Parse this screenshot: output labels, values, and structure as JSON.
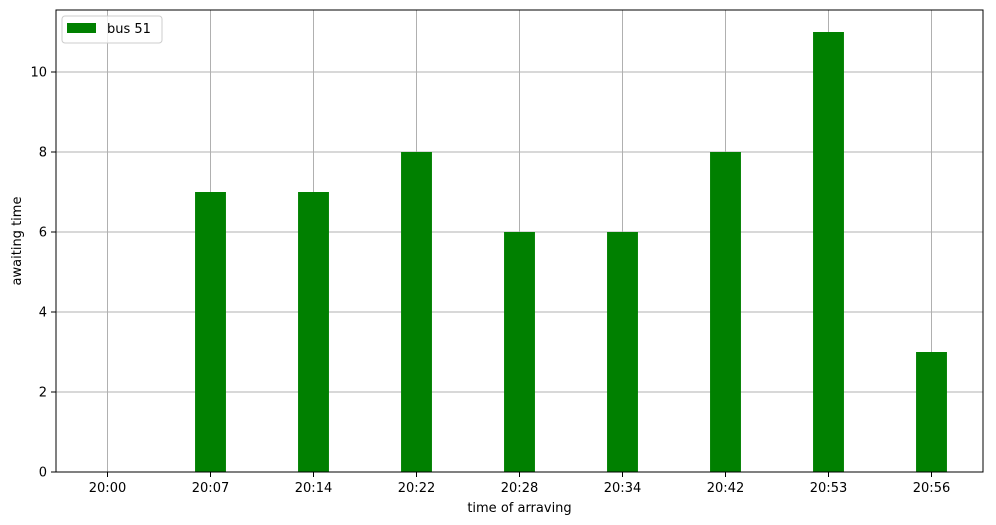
{
  "chart_data": {
    "type": "bar",
    "categories": [
      "20:00",
      "20:07",
      "20:14",
      "20:22",
      "20:28",
      "20:34",
      "20:42",
      "20:53",
      "20:56"
    ],
    "series": [
      {
        "name": "bus 51",
        "values": [
          0,
          7,
          7,
          8,
          6,
          6,
          8,
          11,
          3
        ],
        "color": "#008000"
      }
    ],
    "title": "",
    "xlabel": "time of arraving",
    "ylabel": "awaiting time",
    "ylim": [
      0,
      11.55
    ],
    "yticks": [
      0,
      2,
      4,
      6,
      8,
      10
    ],
    "grid": true,
    "legend_position": "top-left"
  }
}
